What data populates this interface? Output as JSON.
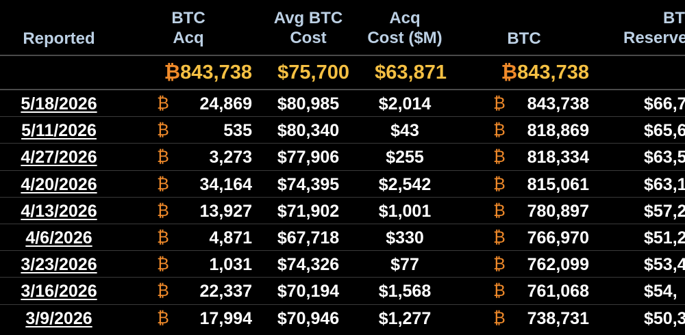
{
  "btc_symbol": "₿",
  "colors": {
    "background": "#000000",
    "header_text": "#bcd0e4",
    "totals_text": "#f5c043",
    "btc_icon": "#f08a2a",
    "row_text": "#ffffff",
    "divider": "#4a4a4a"
  },
  "header": {
    "reported": "Reported",
    "btc_acq_1": "BTC",
    "btc_acq_2": "Acq",
    "avg_cost_1": "Avg BTC",
    "avg_cost_2": "Cost",
    "acq_cost_1": "Acq",
    "acq_cost_2": "Cost ($M)",
    "btc": "BTC",
    "reserve_1": "BTC",
    "reserve_2": "Reserve"
  },
  "totals": {
    "btc_acq": "843,738",
    "avg_cost": "$75,700",
    "acq_cost": "$63,871",
    "btc": "843,738"
  },
  "rows": [
    {
      "date": "5/18/2026",
      "btc_acq": "24,869",
      "avg_cost": "$80,985",
      "acq_cost": "$2,014",
      "btc": "843,738",
      "reserve": "$66,7"
    },
    {
      "date": "5/11/2026",
      "btc_acq": "535",
      "avg_cost": "$80,340",
      "acq_cost": "$43",
      "btc": "818,869",
      "reserve": "$65,6"
    },
    {
      "date": "4/27/2026",
      "btc_acq": "3,273",
      "avg_cost": "$77,906",
      "acq_cost": "$255",
      "btc": "818,334",
      "reserve": "$63,5"
    },
    {
      "date": "4/20/2026",
      "btc_acq": "34,164",
      "avg_cost": "$74,395",
      "acq_cost": "$2,542",
      "btc": "815,061",
      "reserve": "$63,1"
    },
    {
      "date": "4/13/2026",
      "btc_acq": "13,927",
      "avg_cost": "$71,902",
      "acq_cost": "$1,001",
      "btc": "780,897",
      "reserve": "$57,2"
    },
    {
      "date": "4/6/2026",
      "btc_acq": "4,871",
      "avg_cost": "$67,718",
      "acq_cost": "$330",
      "btc": "766,970",
      "reserve": "$51,2"
    },
    {
      "date": "3/23/2026",
      "btc_acq": "1,031",
      "avg_cost": "$74,326",
      "acq_cost": "$77",
      "btc": "762,099",
      "reserve": "$53,4"
    },
    {
      "date": "3/16/2026",
      "btc_acq": "22,337",
      "avg_cost": "$70,194",
      "acq_cost": "$1,568",
      "btc": "761,068",
      "reserve": "$54,"
    },
    {
      "date": "3/9/2026",
      "btc_acq": "17,994",
      "avg_cost": "$70,946",
      "acq_cost": "$1,277",
      "btc": "738,731",
      "reserve": "$50,3"
    }
  ]
}
